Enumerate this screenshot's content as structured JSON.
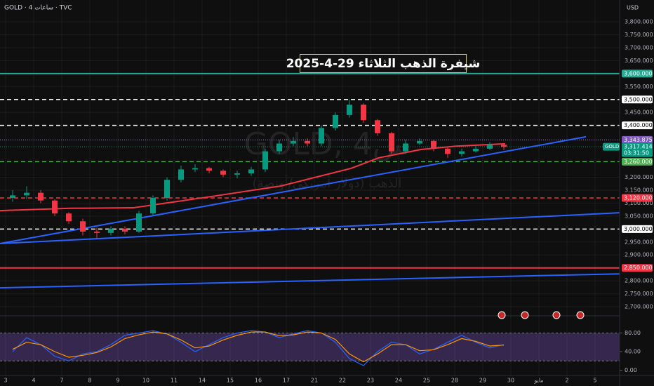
{
  "chart_data": {
    "type": "candlestick",
    "symbol_line": "GOLD · 4 ساعات · TVC",
    "watermark": "GOLD, 4س",
    "watermark_sub": "الذهب (دولار أمريكي/أونصة)",
    "title": "شيفرة الذهب الثلاثاء 29-4-2025",
    "currency": "USD",
    "grid": true,
    "xlim": [
      -0.2,
      21.875
    ],
    "ylim": [
      2665,
      3884
    ],
    "xticks": [
      {
        "value": 0,
        "label": "3"
      },
      {
        "value": 1,
        "label": "4"
      },
      {
        "value": 2,
        "label": "7"
      },
      {
        "value": 3,
        "label": "8"
      },
      {
        "value": 4,
        "label": "9"
      },
      {
        "value": 5,
        "label": "10"
      },
      {
        "value": 6,
        "label": "11"
      },
      {
        "value": 7,
        "label": "14"
      },
      {
        "value": 8,
        "label": "15"
      },
      {
        "value": 9,
        "label": "16"
      },
      {
        "value": 10,
        "label": "17"
      },
      {
        "value": 11,
        "label": "21"
      },
      {
        "value": 12,
        "label": "22"
      },
      {
        "value": 13,
        "label": "23"
      },
      {
        "value": 14,
        "label": "24"
      },
      {
        "value": 15,
        "label": "25"
      },
      {
        "value": 16,
        "label": "28"
      },
      {
        "value": 17,
        "label": "29"
      },
      {
        "value": 18,
        "label": "30"
      },
      {
        "value": 19,
        "label": "مايو"
      },
      {
        "value": 20,
        "label": "2"
      },
      {
        "value": 21,
        "label": "5"
      }
    ],
    "yticks": [
      {
        "value": 3800,
        "label": "3,800.000"
      },
      {
        "value": 3750,
        "label": "3,750.000"
      },
      {
        "value": 3700,
        "label": "3,700.000"
      },
      {
        "value": 3650,
        "label": "3,650.000"
      },
      {
        "value": 3550,
        "label": "3,550.000"
      },
      {
        "value": 3450,
        "label": "3,450.000"
      },
      {
        "value": 3200,
        "label": "3,200.000"
      },
      {
        "value": 3150,
        "label": "3,150.000"
      },
      {
        "value": 3100,
        "label": "3,100.000"
      },
      {
        "value": 3050,
        "label": "3,050.000"
      },
      {
        "value": 2950,
        "label": "2,950.000"
      },
      {
        "value": 2900,
        "label": "2,900.000"
      },
      {
        "value": 2800,
        "label": "2,800.000"
      },
      {
        "value": 2750,
        "label": "2,750.000"
      },
      {
        "value": 2700,
        "label": "2,700.000"
      }
    ],
    "candles": {
      "up_color": "#089981",
      "down_color": "#f23645",
      "x": [
        0.25,
        0.75,
        1.25,
        1.75,
        2.25,
        2.75,
        3.25,
        3.75,
        4.25,
        4.75,
        5.25,
        5.75,
        6.25,
        6.75,
        7.25,
        7.75,
        8.25,
        8.75,
        9.25,
        9.75,
        10.25,
        10.75,
        11.25,
        11.75,
        12.25,
        12.75,
        13.25,
        13.75,
        14.25,
        14.75,
        15.25,
        15.75,
        16.25,
        16.75,
        17.25,
        17.75
      ],
      "open": [
        3120,
        3130,
        3140,
        3110,
        3060,
        3030,
        2990,
        2985,
        3000,
        2990,
        3060,
        3120,
        3190,
        3230,
        3235,
        3225,
        3210,
        3215,
        3230,
        3300,
        3330,
        3340,
        3330,
        3390,
        3440,
        3480,
        3420,
        3370,
        3300,
        3330,
        3340,
        3310,
        3290,
        3300,
        3310,
        3325
      ],
      "high": [
        3150,
        3165,
        3150,
        3115,
        3065,
        3040,
        3005,
        3010,
        3010,
        3070,
        3130,
        3200,
        3245,
        3250,
        3240,
        3230,
        3225,
        3240,
        3310,
        3345,
        3355,
        3350,
        3400,
        3450,
        3500,
        3485,
        3425,
        3375,
        3345,
        3350,
        3345,
        3315,
        3310,
        3320,
        3335,
        3330
      ],
      "low": [
        3105,
        3115,
        3100,
        3050,
        3020,
        2975,
        2965,
        2975,
        2980,
        2985,
        3050,
        3110,
        3180,
        3220,
        3215,
        3200,
        3195,
        3205,
        3220,
        3290,
        3320,
        3320,
        3320,
        3380,
        3430,
        3410,
        3360,
        3290,
        3290,
        3325,
        3300,
        3275,
        3280,
        3295,
        3305,
        3305
      ],
      "close": [
        3130,
        3140,
        3110,
        3060,
        3030,
        2990,
        2985,
        3000,
        2990,
        3060,
        3120,
        3190,
        3230,
        3235,
        3225,
        3210,
        3215,
        3230,
        3300,
        3330,
        3340,
        3330,
        3390,
        3440,
        3480,
        3420,
        3370,
        3300,
        3330,
        3340,
        3310,
        3290,
        3300,
        3310,
        3325,
        3317.414
      ]
    },
    "ma": {
      "color": "#f23645",
      "x": [
        -0.2,
        2.3,
        4.55,
        7.3,
        9.8,
        12.3,
        13.3,
        14.8,
        16.05,
        17.8
      ],
      "values": [
        3071,
        3080,
        3082,
        3125,
        3166,
        3234,
        3275,
        3307,
        3320,
        3329
      ]
    },
    "trend_lines": [
      {
        "color": "#2962ff",
        "x": [
          -0.2,
          20.675
        ],
        "values": [
          2944,
          3356
        ]
      },
      {
        "color": "#2962ff",
        "x": [
          -0.2,
          21.875
        ],
        "values": [
          2944,
          3063
        ]
      },
      {
        "color": "#2962ff",
        "x": [
          -0.2,
          21.875
        ],
        "values": [
          2773,
          2827
        ]
      }
    ],
    "levels": [
      {
        "value": 3600,
        "label": "3,600.000",
        "color": "#22ab94",
        "style": "solid"
      },
      {
        "value": 3500,
        "label": "3,500.000",
        "color": "#ffffff",
        "style": "dashed"
      },
      {
        "value": 3400,
        "label": "3,400.000",
        "color": "#ffffff",
        "style": "dashed"
      },
      {
        "value": 3343.875,
        "label": "3,343.875",
        "color": "#7e57c2",
        "style": "dotted"
      },
      {
        "value": 3260,
        "label": "3,260.000",
        "color": "#4caf50",
        "style": "dashed"
      },
      {
        "value": 3120,
        "label": "3,120.000",
        "color": "#f23645",
        "style": "dashed"
      },
      {
        "value": 3000,
        "label": "3,000.000",
        "color": "#ffffff",
        "style": "dashed"
      },
      {
        "value": 2850,
        "label": "2,850.000",
        "color": "#f23645",
        "style": "solid"
      }
    ],
    "last_price": {
      "value": 3317.414,
      "label": "3,317.414",
      "symbol": "GOLD",
      "countdown": "03:31:50",
      "color": "#089981"
    },
    "rsi": {
      "ylim": [
        -11.2,
        116.8
      ],
      "yticks": [
        {
          "value": 80,
          "label": "80.00"
        },
        {
          "value": 40,
          "label": "40.00"
        },
        {
          "value": 0,
          "label": "0.00"
        }
      ],
      "band": [
        20,
        80
      ],
      "series": [
        {
          "color": "#2962ff",
          "values": [
            40,
            70,
            55,
            30,
            20,
            35,
            40,
            55,
            75,
            80,
            85,
            78,
            60,
            40,
            55,
            70,
            80,
            85,
            82,
            70,
            78,
            85,
            80,
            60,
            25,
            10,
            40,
            60,
            55,
            35,
            45,
            60,
            75,
            60,
            48,
            55
          ]
        },
        {
          "color": "#ff9800",
          "values": [
            45,
            60,
            55,
            40,
            28,
            32,
            38,
            50,
            68,
            76,
            82,
            78,
            65,
            48,
            52,
            65,
            75,
            82,
            82,
            74,
            76,
            82,
            80,
            66,
            35,
            18,
            35,
            55,
            55,
            42,
            44,
            55,
            68,
            62,
            52,
            54
          ]
        }
      ]
    }
  }
}
